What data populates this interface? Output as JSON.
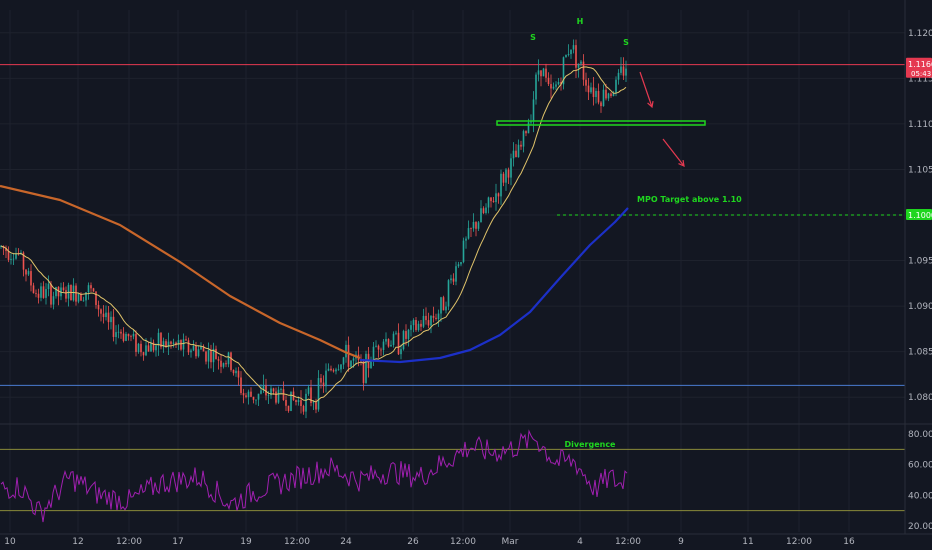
{
  "colors": {
    "background": "#131722",
    "grid": "#1e222d",
    "up": "#26a69a",
    "down": "#ef5350",
    "ma_short": "#e0c36a",
    "ma_long": "#c8662a",
    "ma_blue": "#1c30c8",
    "rsi": "#a020b0",
    "accent_green": "#1fd61f",
    "accent_red": "#e53950",
    "blue_line": "#4a7bd0"
  },
  "chart_data": [
    {
      "type": "candlestick",
      "panel": "price",
      "y_ticks": [
        "1.12000",
        "1.11500",
        "1.11000",
        "1.10500",
        "1.10000",
        "1.09500",
        "1.09000",
        "1.08500",
        "1.08000"
      ],
      "ylim": [
        1.0775,
        1.1225
      ],
      "price_badges": [
        {
          "text": "1.11660",
          "sub": "05:43",
          "value": 1.1166,
          "color": "#e53950"
        },
        {
          "text": "1.10000",
          "sub": "",
          "value": 1.1,
          "color": "#1fd61f"
        }
      ],
      "horizontal_lines": [
        {
          "value": 1.1165,
          "style": "solid",
          "color": "#e53950"
        },
        {
          "value": 1.0813,
          "style": "solid",
          "color": "#4a7bd0"
        },
        {
          "value": 1.1,
          "style": "dashed",
          "color": "#1fd61f"
        }
      ],
      "annotations": [
        {
          "text": "S",
          "color": "#1fd61f"
        },
        {
          "text": "H",
          "color": "#1fd61f"
        },
        {
          "text": "S",
          "color": "#1fd61f"
        },
        {
          "text": "MPO Target above 1.10",
          "color": "#1fd61f"
        }
      ],
      "moving_averages": [
        {
          "color": "#e0c36a"
        },
        {
          "color": "#c8662a"
        },
        {
          "color": "#1c30c8"
        }
      ]
    },
    {
      "type": "line",
      "panel": "rsi",
      "y_ticks": [
        "80.00",
        "60.00",
        "40.00",
        "20.00"
      ],
      "ylim": [
        16,
        84
      ],
      "levels": [
        70,
        30
      ],
      "annotation": "Divergence"
    }
  ],
  "time_axis": [
    "10",
    "12",
    "12:00",
    "17",
    "19",
    "12:00",
    "24",
    "26",
    "12:00",
    "Mar",
    "4",
    "12:00",
    "9",
    "11",
    "12:00",
    "16"
  ]
}
